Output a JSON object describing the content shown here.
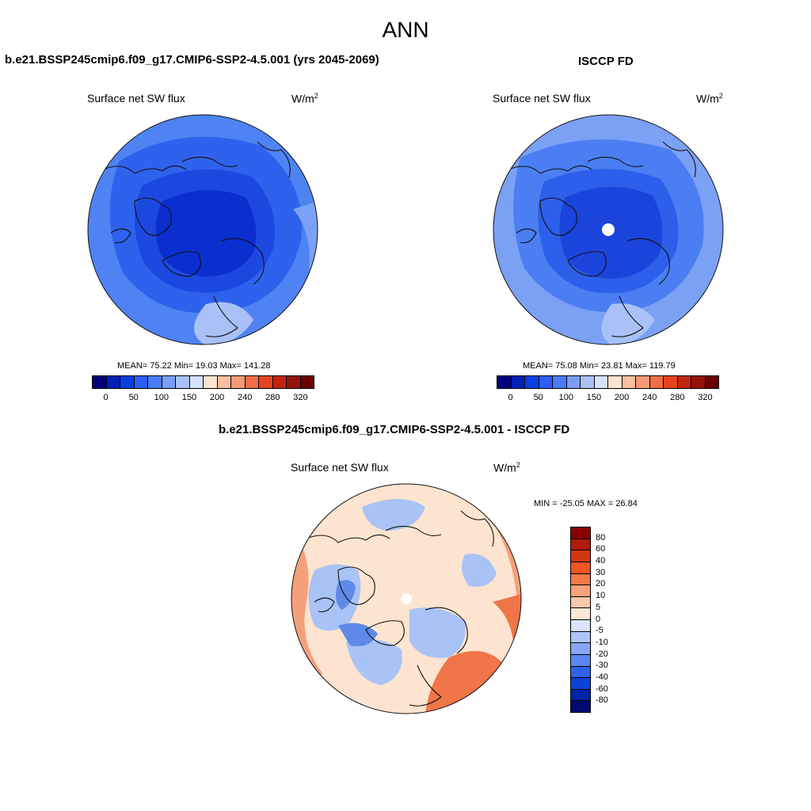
{
  "page": {
    "season": "ANN",
    "model_title": "b.e21.BSSP245cmip6.f09_g17.CMIP6-SSP2-4.5.001 (yrs 2045-2069)",
    "obs_title": "ISCCP FD",
    "diff_title": "b.e21.BSSP245cmip6.f09_g17.CMIP6-SSP2-4.5.001 - ISCCP FD"
  },
  "panels": {
    "model": {
      "variable": "Surface net SW flux",
      "units_base": "W/m",
      "units_exp": "2",
      "stats": "MEAN=  75.22  Min=  19.03  Max= 141.28"
    },
    "obs": {
      "variable": "Surface net SW flux",
      "units_base": "W/m",
      "units_exp": "2",
      "stats": "MEAN=  75.08  Min=  23.81  Max= 119.79"
    },
    "diff": {
      "variable": "Surface net SW flux",
      "units_base": "W/m",
      "units_exp": "2",
      "stats": "MIN = -25.05 MAX =  26.84"
    }
  },
  "colorbar_abs": {
    "colors": [
      "#00007a",
      "#0021b5",
      "#0a3fe0",
      "#2a5ef5",
      "#4a7cf7",
      "#7a9ef5",
      "#a9c1f7",
      "#d6e2fb",
      "#fde4d0",
      "#f9bf9e",
      "#f59a75",
      "#f16f45",
      "#e5431f",
      "#c0260f",
      "#94130a",
      "#6b0000"
    ],
    "labels": [
      "0",
      "50",
      "100",
      "150",
      "200",
      "240",
      "280",
      "320"
    ]
  },
  "colorbar_diff": {
    "colors": [
      "#8a0000",
      "#b01a06",
      "#d4360f",
      "#f35522",
      "#f47a48",
      "#f5a27a",
      "#f9c8a9",
      "#fde6d6",
      "#d8e5fb",
      "#aec6f7",
      "#85a7f5",
      "#5b86f2",
      "#2f63ee",
      "#0d42d6",
      "#0025a6",
      "#000a70"
    ],
    "labels": [
      "80",
      "60",
      "40",
      "30",
      "20",
      "10",
      "5",
      "0",
      "-5",
      "-10",
      "-20",
      "-30",
      "-40",
      "-60",
      "-80"
    ]
  },
  "colors": {
    "model_map": {
      "outer": "#4f83f3",
      "ring2": "#2f62ec",
      "ring3": "#1d48e0",
      "core": "#0b2fcf"
    },
    "obs_map": {
      "outer": "#7ba1f5",
      "ring2": "#4b7ef2",
      "ring3": "#2e5fea",
      "core": "#1b44dc"
    },
    "diff_map": {
      "base": "#fde4d0",
      "warm": "#f4a07a",
      "hot": "#f07548",
      "cool": "#a9c3f7",
      "cold": "#5f8ae8"
    },
    "coast": "#111111",
    "pole_hole": "#ffffff"
  }
}
